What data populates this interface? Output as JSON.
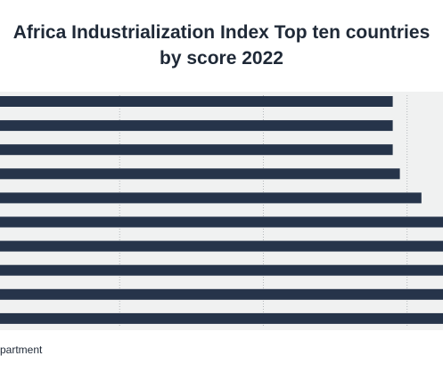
{
  "chart_data": {
    "type": "bar",
    "orientation": "horizontal",
    "title_lines": [
      "Africa Industrialization Index Top ten countries",
      "by score 2022"
    ],
    "categories": [
      "",
      "",
      "",
      "",
      "",
      "",
      "",
      "",
      "",
      ""
    ],
    "values": [
      0.58,
      0.58,
      0.58,
      0.59,
      0.62,
      0.65,
      0.65,
      0.65,
      0.65,
      0.65
    ],
    "xlim": [
      0,
      0.65
    ],
    "grid": true,
    "gridlines_x": [
      0.2,
      0.4,
      0.6
    ],
    "legend": "none",
    "colors": {
      "bar": "#26344a",
      "plot_bg": "#f0f1f1",
      "grid": "#b5b8bb",
      "text": "#1f2937"
    }
  },
  "footer": {
    "source_text": "partment"
  }
}
